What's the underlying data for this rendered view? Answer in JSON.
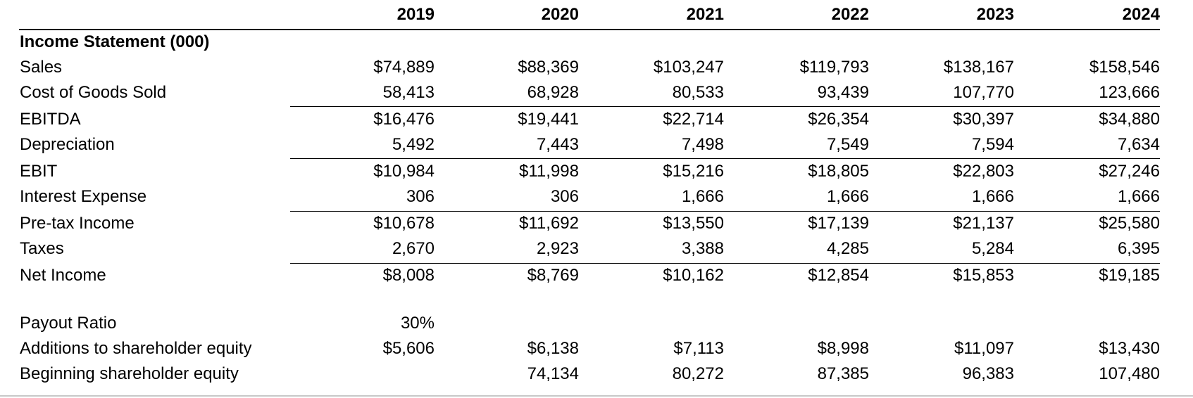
{
  "years": [
    "2019",
    "2020",
    "2021",
    "2022",
    "2023",
    "2024"
  ],
  "section_title": "Income Statement (000)",
  "rows": [
    {
      "label": "Sales",
      "values": [
        "$74,889",
        "$88,369",
        "$103,247",
        "$119,793",
        "$138,167",
        "$158,546"
      ]
    },
    {
      "label": "Cost of Goods Sold",
      "values": [
        "58,413",
        "68,928",
        "80,533",
        "93,439",
        "107,770",
        "123,666"
      ]
    },
    {
      "label": "EBITDA",
      "values": [
        "$16,476",
        "$19,441",
        "$22,714",
        "$26,354",
        "$30,397",
        "$34,880"
      ]
    },
    {
      "label": "Depreciation",
      "values": [
        "5,492",
        "7,443",
        "7,498",
        "7,549",
        "7,594",
        "7,634"
      ]
    },
    {
      "label": "EBIT",
      "values": [
        "$10,984",
        "$11,998",
        "$15,216",
        "$18,805",
        "$22,803",
        "$27,246"
      ]
    },
    {
      "label": "Interest Expense",
      "values": [
        "306",
        "306",
        "1,666",
        "1,666",
        "1,666",
        "1,666"
      ]
    },
    {
      "label": "Pre-tax Income",
      "values": [
        "$10,678",
        "$11,692",
        "$13,550",
        "$17,139",
        "$21,137",
        "$25,580"
      ]
    },
    {
      "label": "Taxes",
      "values": [
        "2,670",
        "2,923",
        "3,388",
        "4,285",
        "5,284",
        "6,395"
      ]
    },
    {
      "label": "Net Income",
      "values": [
        "$8,008",
        "$8,769",
        "$10,162",
        "$12,854",
        "$15,853",
        "$19,185"
      ]
    }
  ],
  "extra_rows": [
    {
      "label": "Payout Ratio",
      "values": [
        "30%",
        "",
        "",
        "",
        "",
        ""
      ]
    },
    {
      "label": "Additions to shareholder equity",
      "values": [
        "$5,606",
        "$6,138",
        "$7,113",
        "$8,998",
        "$11,097",
        "$13,430"
      ]
    },
    {
      "label": "Beginning shareholder equity",
      "values": [
        "",
        "74,134",
        "80,272",
        "87,385",
        "96,383",
        "107,480"
      ]
    }
  ]
}
